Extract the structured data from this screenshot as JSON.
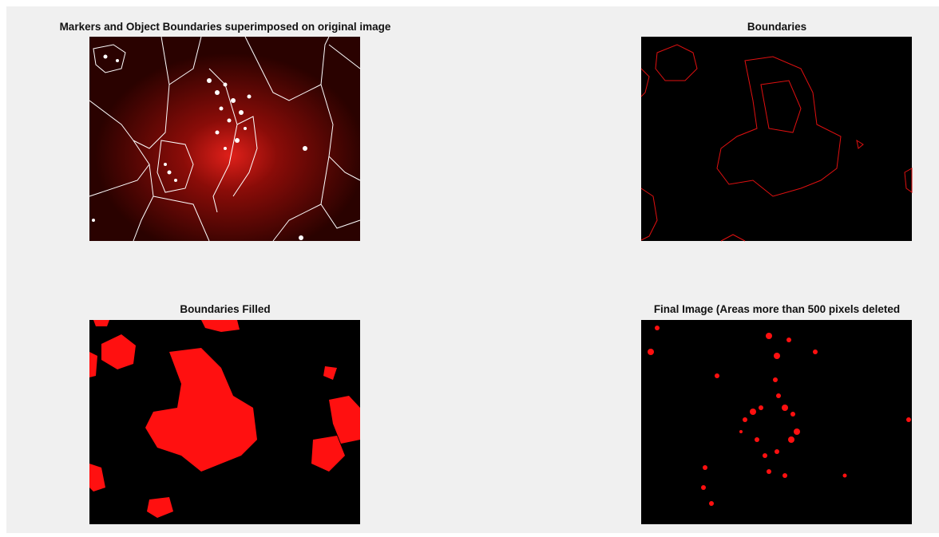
{
  "panels": [
    {
      "title": "Markers and Object Boundaries superimposed on original image"
    },
    {
      "title": "Boundaries"
    },
    {
      "title": "Boundaries Filled"
    },
    {
      "title": "Final Image (Areas more than 500 pixels deleted"
    }
  ]
}
